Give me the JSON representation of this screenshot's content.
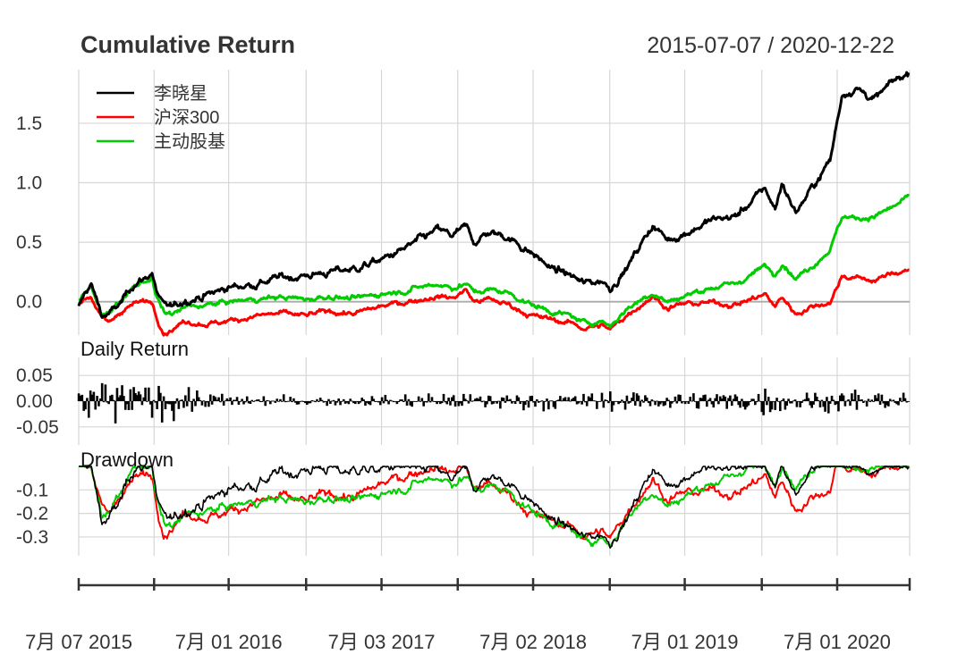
{
  "header": {
    "title": "Cumulative Return",
    "date_range": "2015-07-07 / 2020-12-22"
  },
  "panels": {
    "daily_title": "Daily Return",
    "drawdown_title": "Drawdown"
  },
  "colors": {
    "series_1": "#000000",
    "series_2": "#ff0000",
    "series_3": "#00cc00",
    "grid": "#d6d6d6",
    "zero_line": "#aaaaaa",
    "axis": "#333333"
  },
  "chart_data": {
    "type": "line",
    "title": "Cumulative Return",
    "subtitle": "2015-07-07 / 2020-12-22",
    "legend": {
      "position": "top-left",
      "entries": [
        "李晓星",
        "沪深300",
        "主动股基"
      ]
    },
    "grid": true,
    "x_axis": {
      "ticks": [
        "2015-07-07",
        "2016-07-01",
        "2017-07-03",
        "2018-07-02",
        "2019-07-01",
        "2020-07-01"
      ],
      "tick_labels": [
        "7月 07 2015",
        "7月 01 2016",
        "7月 03 2017",
        "7月 02 2018",
        "7月 01 2019",
        "7月 01 2020"
      ],
      "minor_ticks": [
        "2016-01-04",
        "2017-01-03",
        "2018-01-02",
        "2019-01-02",
        "2020-01-02",
        "2020-12-22"
      ],
      "range": [
        "2015-07-07",
        "2020-12-22"
      ]
    },
    "cumulative_return": {
      "ylim": [
        -0.28,
        1.95
      ],
      "y_ticks": [
        0.0,
        0.5,
        1.0,
        1.5
      ],
      "y_tick_labels": [
        "0.0",
        "0.5",
        "1.0",
        "1.5"
      ],
      "series": [
        {
          "name": "李晓星",
          "points": [
            [
              "2015-07-07",
              -0.05
            ],
            [
              "2015-07-20",
              0.05
            ],
            [
              "2015-08-05",
              0.15
            ],
            [
              "2015-08-20",
              0.0
            ],
            [
              "2015-09-01",
              -0.12
            ],
            [
              "2015-09-20",
              -0.1
            ],
            [
              "2015-10-15",
              -0.02
            ],
            [
              "2015-11-15",
              0.15
            ],
            [
              "2015-12-15",
              0.2
            ],
            [
              "2015-12-30",
              0.25
            ],
            [
              "2016-01-08",
              0.1
            ],
            [
              "2016-01-28",
              -0.05
            ],
            [
              "2016-02-20",
              -0.05
            ],
            [
              "2016-03-20",
              0.02
            ],
            [
              "2016-05-01",
              0.05
            ],
            [
              "2016-06-01",
              0.08
            ],
            [
              "2016-07-01",
              0.12
            ],
            [
              "2016-09-01",
              0.15
            ],
            [
              "2016-11-01",
              0.2
            ],
            [
              "2017-01-01",
              0.22
            ],
            [
              "2017-03-01",
              0.25
            ],
            [
              "2017-05-01",
              0.28
            ],
            [
              "2017-07-03",
              0.35
            ],
            [
              "2017-09-01",
              0.45
            ],
            [
              "2017-11-15",
              0.6
            ],
            [
              "2017-12-20",
              0.55
            ],
            [
              "2018-01-22",
              0.62
            ],
            [
              "2018-02-10",
              0.5
            ],
            [
              "2018-03-15",
              0.58
            ],
            [
              "2018-05-01",
              0.55
            ],
            [
              "2018-07-02",
              0.4
            ],
            [
              "2018-08-15",
              0.28
            ],
            [
              "2018-10-01",
              0.22
            ],
            [
              "2018-10-31",
              0.15
            ],
            [
              "2018-12-15",
              0.18
            ],
            [
              "2019-01-03",
              0.12
            ],
            [
              "2019-02-15",
              0.3
            ],
            [
              "2019-04-15",
              0.65
            ],
            [
              "2019-05-20",
              0.52
            ],
            [
              "2019-07-01",
              0.58
            ],
            [
              "2019-09-01",
              0.68
            ],
            [
              "2019-11-01",
              0.72
            ],
            [
              "2020-01-10",
              0.95
            ],
            [
              "2020-02-03",
              0.78
            ],
            [
              "2020-02-20",
              1.0
            ],
            [
              "2020-03-23",
              0.75
            ],
            [
              "2020-05-01",
              0.95
            ],
            [
              "2020-06-15",
              1.2
            ],
            [
              "2020-07-13",
              1.75
            ],
            [
              "2020-08-15",
              1.8
            ],
            [
              "2020-09-30",
              1.7
            ],
            [
              "2020-11-15",
              1.85
            ],
            [
              "2020-12-22",
              1.93
            ]
          ]
        },
        {
          "name": "沪深300",
          "points": [
            [
              "2015-07-07",
              0.0
            ],
            [
              "2015-07-20",
              0.02
            ],
            [
              "2015-08-05",
              0.05
            ],
            [
              "2015-08-20",
              -0.05
            ],
            [
              "2015-09-01",
              -0.15
            ],
            [
              "2015-09-20",
              -0.18
            ],
            [
              "2015-10-15",
              -0.08
            ],
            [
              "2015-11-15",
              -0.02
            ],
            [
              "2015-12-15",
              0.0
            ],
            [
              "2015-12-30",
              0.0
            ],
            [
              "2016-01-08",
              -0.1
            ],
            [
              "2016-01-28",
              -0.25
            ],
            [
              "2016-02-20",
              -0.22
            ],
            [
              "2016-03-20",
              -0.16
            ],
            [
              "2016-05-01",
              -0.18
            ],
            [
              "2016-06-01",
              -0.18
            ],
            [
              "2016-07-01",
              -0.16
            ],
            [
              "2016-09-01",
              -0.12
            ],
            [
              "2016-11-01",
              -0.1
            ],
            [
              "2017-01-01",
              -0.12
            ],
            [
              "2017-03-01",
              -0.08
            ],
            [
              "2017-05-01",
              -0.1
            ],
            [
              "2017-07-03",
              -0.04
            ],
            [
              "2017-09-01",
              0.0
            ],
            [
              "2017-11-15",
              0.05
            ],
            [
              "2017-12-20",
              0.03
            ],
            [
              "2018-01-22",
              0.1
            ],
            [
              "2018-02-10",
              0.0
            ],
            [
              "2018-03-15",
              0.02
            ],
            [
              "2018-05-01",
              -0.02
            ],
            [
              "2018-07-02",
              -0.12
            ],
            [
              "2018-08-15",
              -0.15
            ],
            [
              "2018-10-01",
              -0.18
            ],
            [
              "2018-10-31",
              -0.22
            ],
            [
              "2018-12-15",
              -0.2
            ],
            [
              "2019-01-03",
              -0.24
            ],
            [
              "2019-02-15",
              -0.1
            ],
            [
              "2019-04-15",
              0.05
            ],
            [
              "2019-05-20",
              -0.05
            ],
            [
              "2019-07-01",
              -0.02
            ],
            [
              "2019-09-01",
              -0.01
            ],
            [
              "2019-11-01",
              -0.02
            ],
            [
              "2020-01-10",
              0.06
            ],
            [
              "2020-02-03",
              -0.04
            ],
            [
              "2020-02-20",
              0.04
            ],
            [
              "2020-03-23",
              -0.1
            ],
            [
              "2020-05-01",
              -0.04
            ],
            [
              "2020-06-15",
              0.0
            ],
            [
              "2020-07-13",
              0.22
            ],
            [
              "2020-08-15",
              0.2
            ],
            [
              "2020-09-30",
              0.18
            ],
            [
              "2020-11-15",
              0.24
            ],
            [
              "2020-12-22",
              0.28
            ]
          ]
        },
        {
          "name": "主动股基",
          "points": [
            [
              "2015-07-07",
              0.0
            ],
            [
              "2015-07-20",
              0.05
            ],
            [
              "2015-08-05",
              0.12
            ],
            [
              "2015-08-20",
              0.02
            ],
            [
              "2015-09-01",
              -0.1
            ],
            [
              "2015-09-20",
              -0.08
            ],
            [
              "2015-10-15",
              0.0
            ],
            [
              "2015-11-15",
              0.12
            ],
            [
              "2015-12-15",
              0.18
            ],
            [
              "2015-12-30",
              0.2
            ],
            [
              "2016-01-08",
              0.05
            ],
            [
              "2016-01-28",
              -0.1
            ],
            [
              "2016-02-20",
              -0.1
            ],
            [
              "2016-03-20",
              -0.05
            ],
            [
              "2016-05-01",
              -0.03
            ],
            [
              "2016-06-01",
              -0.02
            ],
            [
              "2016-07-01",
              0.0
            ],
            [
              "2016-09-01",
              0.02
            ],
            [
              "2016-11-01",
              0.04
            ],
            [
              "2017-01-01",
              0.02
            ],
            [
              "2017-03-01",
              0.05
            ],
            [
              "2017-05-01",
              0.02
            ],
            [
              "2017-07-03",
              0.07
            ],
            [
              "2017-09-01",
              0.1
            ],
            [
              "2017-11-15",
              0.15
            ],
            [
              "2017-12-20",
              0.12
            ],
            [
              "2018-01-22",
              0.15
            ],
            [
              "2018-02-10",
              0.08
            ],
            [
              "2018-03-15",
              0.1
            ],
            [
              "2018-05-01",
              0.08
            ],
            [
              "2018-07-02",
              -0.03
            ],
            [
              "2018-08-15",
              -0.08
            ],
            [
              "2018-10-01",
              -0.12
            ],
            [
              "2018-10-31",
              -0.18
            ],
            [
              "2018-12-15",
              -0.16
            ],
            [
              "2019-01-03",
              -0.2
            ],
            [
              "2019-02-15",
              -0.05
            ],
            [
              "2019-04-15",
              0.08
            ],
            [
              "2019-05-20",
              0.0
            ],
            [
              "2019-07-01",
              0.05
            ],
            [
              "2019-09-01",
              0.12
            ],
            [
              "2019-11-01",
              0.15
            ],
            [
              "2020-01-10",
              0.3
            ],
            [
              "2020-02-03",
              0.22
            ],
            [
              "2020-02-20",
              0.35
            ],
            [
              "2020-03-23",
              0.2
            ],
            [
              "2020-05-01",
              0.3
            ],
            [
              "2020-06-15",
              0.45
            ],
            [
              "2020-07-13",
              0.72
            ],
            [
              "2020-08-15",
              0.7
            ],
            [
              "2020-09-30",
              0.72
            ],
            [
              "2020-11-15",
              0.8
            ],
            [
              "2020-12-22",
              0.88
            ]
          ]
        }
      ]
    },
    "daily_return": {
      "ylim": [
        -0.085,
        0.085
      ],
      "y_ticks": [
        -0.05,
        0.0,
        0.05
      ],
      "y_tick_labels": [
        "-0.05",
        "0.00",
        "0.05"
      ],
      "series": "李晓星",
      "magnitude_profile": [
        [
          "2015-07-07",
          0.07
        ],
        [
          "2015-10-01",
          0.055
        ],
        [
          "2016-02-01",
          0.06
        ],
        [
          "2016-05-01",
          0.025
        ],
        [
          "2016-10-01",
          0.015
        ],
        [
          "2017-06-01",
          0.015
        ],
        [
          "2018-02-01",
          0.025
        ],
        [
          "2018-07-01",
          0.025
        ],
        [
          "2019-02-15",
          0.03
        ],
        [
          "2019-06-01",
          0.025
        ],
        [
          "2020-02-01",
          0.04
        ],
        [
          "2020-04-01",
          0.025
        ],
        [
          "2020-07-13",
          0.035
        ],
        [
          "2020-12-22",
          0.02
        ]
      ]
    },
    "drawdown": {
      "ylim": [
        -0.38,
        0.0
      ],
      "y_ticks": [
        -0.1,
        -0.2,
        -0.3
      ],
      "y_tick_labels": [
        "-0.1",
        "-0.2",
        "-0.3"
      ]
    }
  }
}
